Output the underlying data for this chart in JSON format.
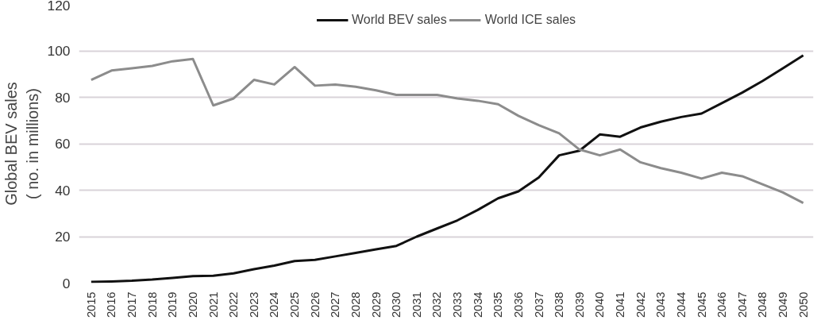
{
  "chart_data": {
    "type": "line",
    "ylabel": "Global BEV sales\n( no. in millions)",
    "categories": [
      "2015",
      "2016",
      "2017",
      "2018",
      "2019",
      "2020",
      "2021",
      "2022",
      "2023",
      "2024",
      "2025",
      "2026",
      "2027",
      "2028",
      "2029",
      "2030",
      "2031",
      "2032",
      "2033",
      "2034",
      "2035",
      "2036",
      "2037",
      "2038",
      "2039",
      "2040",
      "2041",
      "2042",
      "2043",
      "2044",
      "2045",
      "2046",
      "2047",
      "2048",
      "2049",
      "2050"
    ],
    "series": [
      {
        "name": "World BEV sales",
        "color": "#111111",
        "values": [
          0.5,
          0.7,
          1,
          1.5,
          2.2,
          3,
          3.2,
          4.2,
          6,
          7.5,
          9.5,
          10,
          11.5,
          13,
          14.5,
          16,
          20,
          23.5,
          27,
          31.5,
          36.5,
          39.5,
          45.5,
          55,
          57,
          64,
          63,
          67,
          69.5,
          71.5,
          73,
          77.5,
          82,
          87,
          92.5,
          98
        ]
      },
      {
        "name": "World ICE sales",
        "color": "#8c8c8c",
        "values": [
          87.5,
          91.5,
          92.5,
          93.5,
          95.5,
          96.5,
          76.5,
          79.5,
          87.5,
          85.5,
          93,
          85,
          85.5,
          84.5,
          83,
          81,
          81,
          81,
          79.5,
          78.5,
          77,
          72,
          68,
          64.5,
          57.5,
          55,
          57.5,
          52,
          49.5,
          47.5,
          45,
          47.5,
          46,
          42.5,
          39,
          34.5
        ]
      }
    ],
    "ylim": [
      0,
      120
    ],
    "yticks": [
      0,
      20,
      40,
      60,
      80,
      100,
      120
    ],
    "grid": "y",
    "legend": "top",
    "marker": "none",
    "line_style": "solid"
  }
}
